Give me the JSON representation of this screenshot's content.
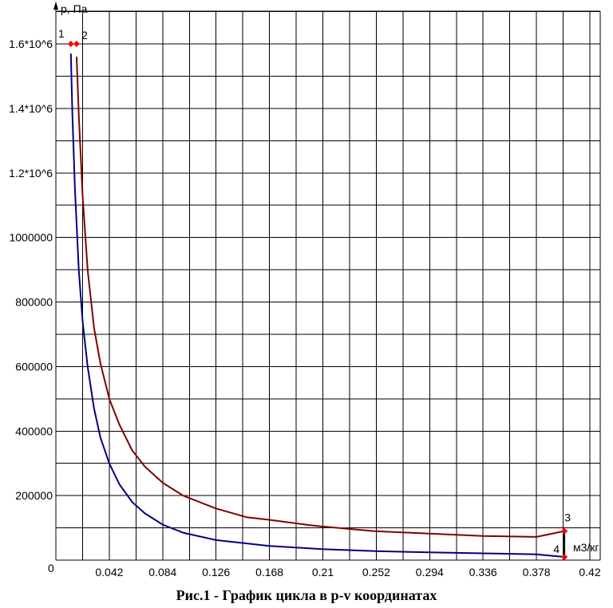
{
  "chart_data": {
    "type": "line",
    "title": "Рис.1 - График цикла в p-v координатах",
    "ylabel": "p, Па",
    "xlabel": "м3/кг",
    "origin_label": "0",
    "xlim": [
      0,
      0.42
    ],
    "ylim": [
      0,
      1700000
    ],
    "x_ticks": [
      {
        "value": 0.042,
        "label": "0.042"
      },
      {
        "value": 0.084,
        "label": "0.084"
      },
      {
        "value": 0.126,
        "label": "0.126"
      },
      {
        "value": 0.168,
        "label": "0.168"
      },
      {
        "value": 0.21,
        "label": "0.21"
      },
      {
        "value": 0.252,
        "label": "0.252"
      },
      {
        "value": 0.294,
        "label": "0.294"
      },
      {
        "value": 0.336,
        "label": "0.336"
      },
      {
        "value": 0.378,
        "label": "0.378"
      },
      {
        "value": 0.42,
        "label": "0.42"
      }
    ],
    "y_ticks": [
      {
        "value": 200000,
        "label": "200000"
      },
      {
        "value": 400000,
        "label": "400000"
      },
      {
        "value": 600000,
        "label": "600000"
      },
      {
        "value": 800000,
        "label": "800000"
      },
      {
        "value": 1000000,
        "label": "1000000"
      },
      {
        "value": 1200000,
        "label": "1.2*10^6"
      },
      {
        "value": 1400000,
        "label": "1.4*10^6"
      },
      {
        "value": 1600000,
        "label": "1.6*10^6"
      }
    ],
    "grid": true,
    "series": [
      {
        "color": "#800000",
        "x": [
          0.0163,
          0.018,
          0.021,
          0.025,
          0.03,
          0.035,
          0.042,
          0.05,
          0.06,
          0.07,
          0.084,
          0.1,
          0.126,
          0.15,
          0.168,
          0.2,
          0.21,
          0.25,
          0.294,
          0.336,
          0.378,
          0.4
        ],
        "y": [
          1560000,
          1380000,
          1130000,
          900000,
          720000,
          610000,
          500000,
          420000,
          340000,
          290000,
          240000,
          200000,
          160000,
          133000,
          125000,
          108000,
          104000,
          90000,
          82000,
          75000,
          72000,
          90000
        ]
      },
      {
        "color": "#000080",
        "x": [
          0.0118,
          0.013,
          0.015,
          0.018,
          0.021,
          0.025,
          0.03,
          0.035,
          0.042,
          0.05,
          0.06,
          0.07,
          0.084,
          0.1,
          0.126,
          0.168,
          0.21,
          0.252,
          0.294,
          0.336,
          0.378,
          0.4
        ],
        "y": [
          1570000,
          1380000,
          1150000,
          900000,
          740000,
          600000,
          470000,
          380000,
          300000,
          235000,
          180000,
          145000,
          110000,
          85000,
          62000,
          44000,
          34000,
          28000,
          24000,
          21000,
          18000,
          10000
        ]
      },
      {
        "color": "#000000",
        "x": [
          0.4,
          0.4
        ],
        "y": [
          90000,
          10000
        ]
      }
    ],
    "points": [
      {
        "label": "1",
        "x": 0.0118,
        "y": 1600000,
        "color": "#ff0000"
      },
      {
        "label": "2",
        "x": 0.0163,
        "y": 1600000,
        "color": "#ff0000"
      },
      {
        "label": "3",
        "x": 0.4,
        "y": 90000,
        "color": "#ff0000"
      },
      {
        "label": "4",
        "x": 0.4,
        "y": 10000,
        "color": "#ff0000"
      }
    ]
  }
}
